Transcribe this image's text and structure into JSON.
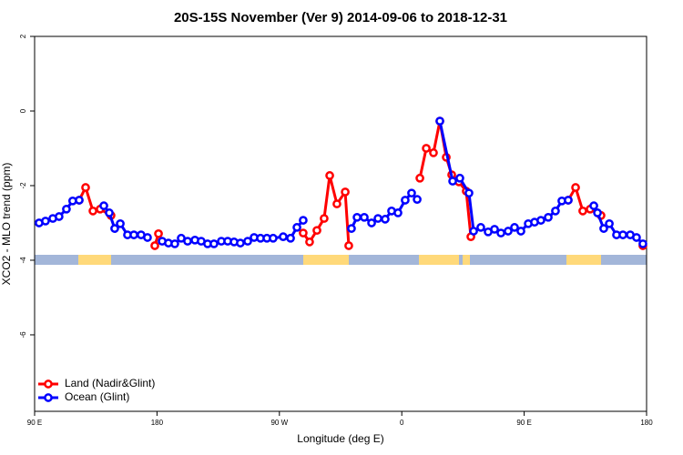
{
  "chart_data": {
    "type": "line",
    "title": "20S-15S November (Ver 9)   2014-09-06 to 2018-12-31",
    "xlabel": "Longitude (deg E)",
    "ylabel": "XCO2 - MLO trend (ppm)",
    "xlim": [
      90,
      540
    ],
    "ylim": [
      -8.05,
      2
    ],
    "xticks": [
      {
        "value": 90,
        "label": "90 E"
      },
      180,
      {
        "value": 270,
        "label": "90 W"
      },
      {
        "value": 360,
        "label": "0"
      },
      {
        "value": 450,
        "label": "90 E"
      },
      {
        "value": 540,
        "label": "180"
      }
    ],
    "yticks": [
      2,
      0,
      -2,
      -4,
      -6
    ],
    "legend": "bottomleft",
    "series": [
      {
        "name": "Land (Nadir&Glint)",
        "color": "#ff0000",
        "x": [
          122.8,
          127.5,
          132.9,
          138.2,
          146.2,
          null,
          178.4,
          181.1,
          null,
          287.5,
          292.2,
          297.6,
          302.9,
          307,
          312.3,
          318.4,
          321,
          null,
          373.3,
          378,
          383.3,
          388,
          392.7,
          396.7,
          402,
          407.4,
          410.8,
          null,
          482.4,
          487.8,
          493.1,
          498.5,
          506.5,
          null,
          537.3
        ],
        "values": [
          -2.39,
          -2.05,
          -2.68,
          -2.63,
          -2.8,
          null,
          -3.61,
          -3.29,
          null,
          -3.27,
          -3.51,
          -3.2,
          -2.88,
          -1.73,
          -2.49,
          -2.17,
          -3.61,
          null,
          -1.8,
          -1.0,
          -1.12,
          -0.27,
          -1.24,
          -1.71,
          -1.9,
          -2.15,
          -3.37,
          null,
          -2.39,
          -2.05,
          -2.68,
          -2.63,
          -2.8,
          null,
          -3.61
        ]
      },
      {
        "name": "Ocean (Glint)",
        "color": "#0000ff",
        "x": [
          93.3,
          98,
          103.4,
          108,
          113.4,
          118,
          122.8,
          null,
          140.9,
          144.9,
          148.9,
          153,
          158.3,
          163,
          168.3,
          173,
          null,
          183.8,
          188.4,
          193.1,
          197.8,
          202.5,
          207.9,
          212.5,
          217.2,
          221.9,
          227.3,
          232,
          236.7,
          241.3,
          246.7,
          251.4,
          256.1,
          260.8,
          265.4,
          272.8,
          278.2,
          282.9,
          287.5,
          null,
          323,
          327.1,
          332.4,
          337.8,
          342.5,
          347.8,
          352.5,
          357.2,
          362.5,
          367.2,
          371.3,
          null,
          388,
          397.4,
          402.7,
          409.4,
          412.8,
          418.1,
          423.5,
          428.2,
          432.9,
          438.2,
          442.9,
          447.6,
          453,
          457.6,
          462.3,
          467.7,
          473,
          477.7,
          482.4,
          null,
          501.2,
          503.9,
          508.5,
          512.6,
          517.9,
          522.6,
          528,
          532.6,
          537.3
        ],
        "values": [
          -3.0,
          -2.95,
          -2.88,
          -2.83,
          -2.63,
          -2.41,
          -2.39,
          null,
          -2.54,
          -2.73,
          -3.15,
          -3.02,
          -3.32,
          -3.32,
          -3.32,
          -3.39,
          null,
          -3.49,
          -3.54,
          -3.56,
          -3.41,
          -3.49,
          -3.46,
          -3.49,
          -3.56,
          -3.56,
          -3.49,
          -3.49,
          -3.51,
          -3.54,
          -3.49,
          -3.39,
          -3.41,
          -3.41,
          -3.41,
          -3.37,
          -3.41,
          -3.12,
          -2.93,
          null,
          -3.15,
          -2.85,
          -2.85,
          -3.0,
          -2.88,
          -2.9,
          -2.68,
          -2.73,
          -2.39,
          -2.2,
          -2.37,
          null,
          -0.27,
          -1.88,
          -1.8,
          -2.2,
          -3.22,
          -3.12,
          -3.24,
          -3.17,
          -3.27,
          -3.22,
          -3.12,
          -3.22,
          -3.02,
          -2.98,
          -2.93,
          -2.85,
          -2.68,
          -2.41,
          -2.39,
          null,
          -2.54,
          -2.73,
          -3.15,
          -3.02,
          -3.32,
          -3.32,
          -3.32,
          -3.39,
          -3.56
        ]
      }
    ]
  }
}
